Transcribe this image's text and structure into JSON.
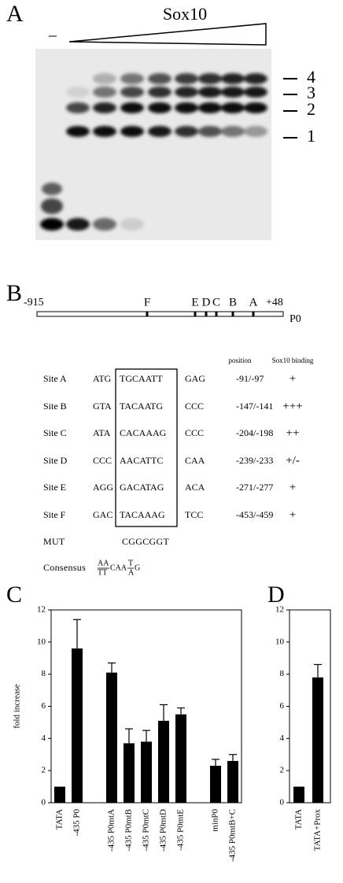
{
  "panel_a": {
    "panel": "A",
    "title": "Sox10",
    "control_label": "–",
    "band_labels": [
      "4",
      "3",
      "2",
      "1"
    ]
  },
  "panel_b": {
    "panel": "B",
    "map": {
      "start": "-915",
      "end": "+48",
      "gene": "P0",
      "sites": [
        "F",
        "E",
        "D",
        "C",
        "B",
        "A"
      ]
    },
    "table": {
      "headers": [
        "position",
        "Sox10 binding"
      ],
      "rows": [
        [
          "Site A",
          "ATG",
          "TGCAATT",
          "GAG",
          "-91/-97",
          "+"
        ],
        [
          "Site B",
          "GTA",
          "TACAATG",
          "CCC",
          "-147/-141",
          "+++"
        ],
        [
          "Site C",
          "ATA",
          "CACAAAG",
          "CCC",
          "-204/-198",
          "++"
        ],
        [
          "Site D",
          "CCC",
          "AACATTC",
          "CAA",
          "-239/-233",
          "+/-"
        ],
        [
          "Site E",
          "AGG",
          "GACATAG",
          "ACA",
          "-271/-277",
          "+"
        ],
        [
          "Site F",
          "GAC",
          "TACAAAG",
          "TCC",
          "-453/-459",
          "+"
        ]
      ],
      "mut": {
        "label": "MUT",
        "seq": "CGGCGGT"
      },
      "consensus": {
        "label": "Consensus",
        "seq": [
          {
            "top": "AA",
            "bottom": "TT"
          },
          "CAA",
          {
            "top": "T",
            "bottom": "A"
          },
          "G"
        ]
      }
    }
  },
  "chart_data": [
    {
      "type": "bar",
      "panel": "C",
      "y_label": "fold increase",
      "categories": [
        "TATA",
        "-435 P0",
        "-435 P0mtA",
        "-435 P0mtB",
        "-435 P0mtC",
        "-435 P0mtD",
        "-435 P0mtE",
        "minP0",
        "-435 P0mtB+C"
      ],
      "values": [
        1,
        9.6,
        8.1,
        3.7,
        3.8,
        5.1,
        5.5,
        2.3,
        2.6
      ],
      "errors": [
        null,
        1.8,
        0.6,
        0.9,
        0.7,
        1.0,
        0.4,
        0.4,
        0.4
      ],
      "color": "#000000",
      "ylim": [
        0,
        12
      ],
      "yticks": [
        0,
        2,
        4,
        6,
        8,
        10,
        12
      ]
    },
    {
      "type": "bar",
      "panel": "D",
      "categories": [
        "TATA",
        "TATA+Prox"
      ],
      "values": [
        1,
        7.8
      ],
      "errors": [
        null,
        0.8
      ],
      "color": "#000000",
      "ylim": [
        0,
        12
      ],
      "yticks": [
        0,
        2,
        4,
        6,
        8,
        10,
        12
      ]
    }
  ]
}
